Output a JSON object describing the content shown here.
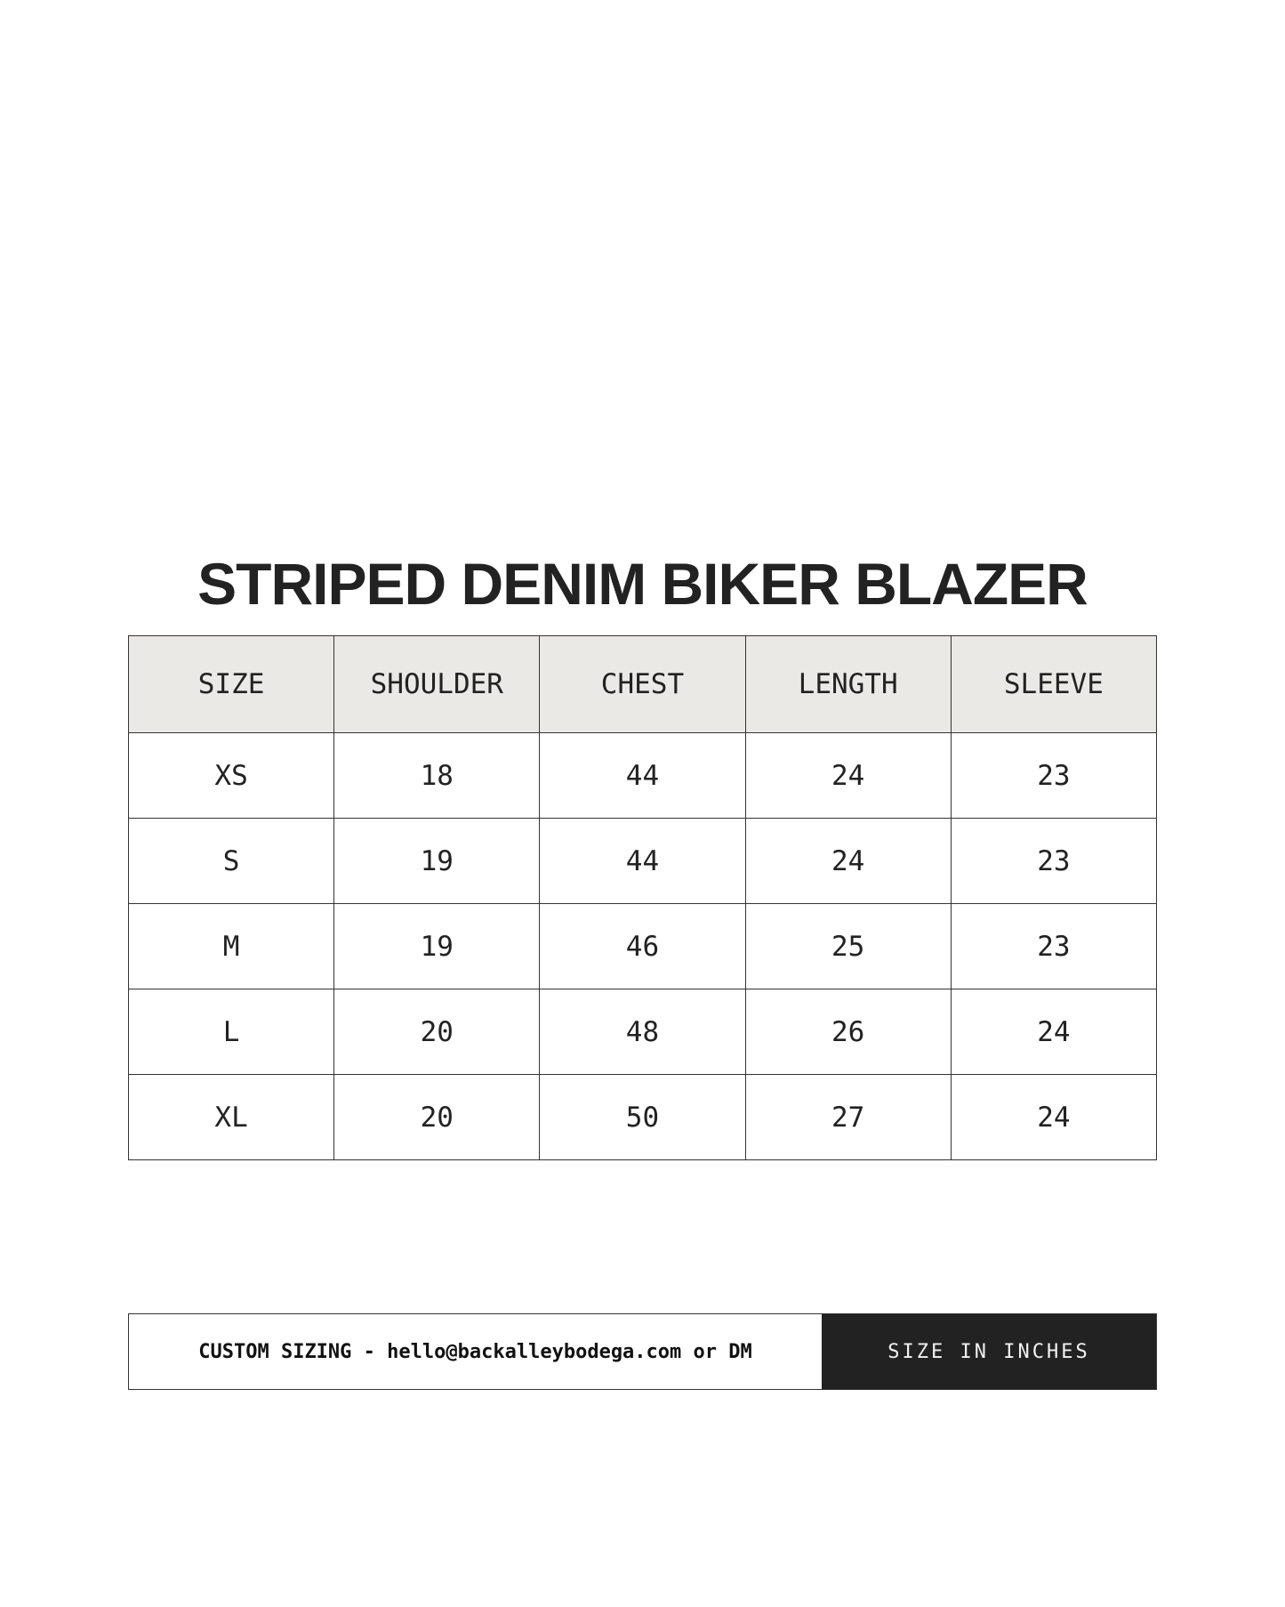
{
  "title": "STRIPED DENIM BIKER BLAZER",
  "table": {
    "headers": [
      "SIZE",
      "SHOULDER",
      "CHEST",
      "LENGTH",
      "SLEEVE"
    ],
    "rows": [
      [
        "XS",
        "18",
        "44",
        "24",
        "23"
      ],
      [
        "S",
        "19",
        "44",
        "24",
        "23"
      ],
      [
        "M",
        "19",
        "46",
        "25",
        "23"
      ],
      [
        "L",
        "20",
        "48",
        "26",
        "24"
      ],
      [
        "XL",
        "20",
        "50",
        "27",
        "24"
      ]
    ]
  },
  "footer": {
    "custom_sizing": "CUSTOM SIZING - hello@backalleybodega.com or DM",
    "units": "SIZE IN INCHES"
  },
  "colors": {
    "header_bg": "#eae9e5",
    "text": "#222222",
    "units_bg": "#222222"
  }
}
